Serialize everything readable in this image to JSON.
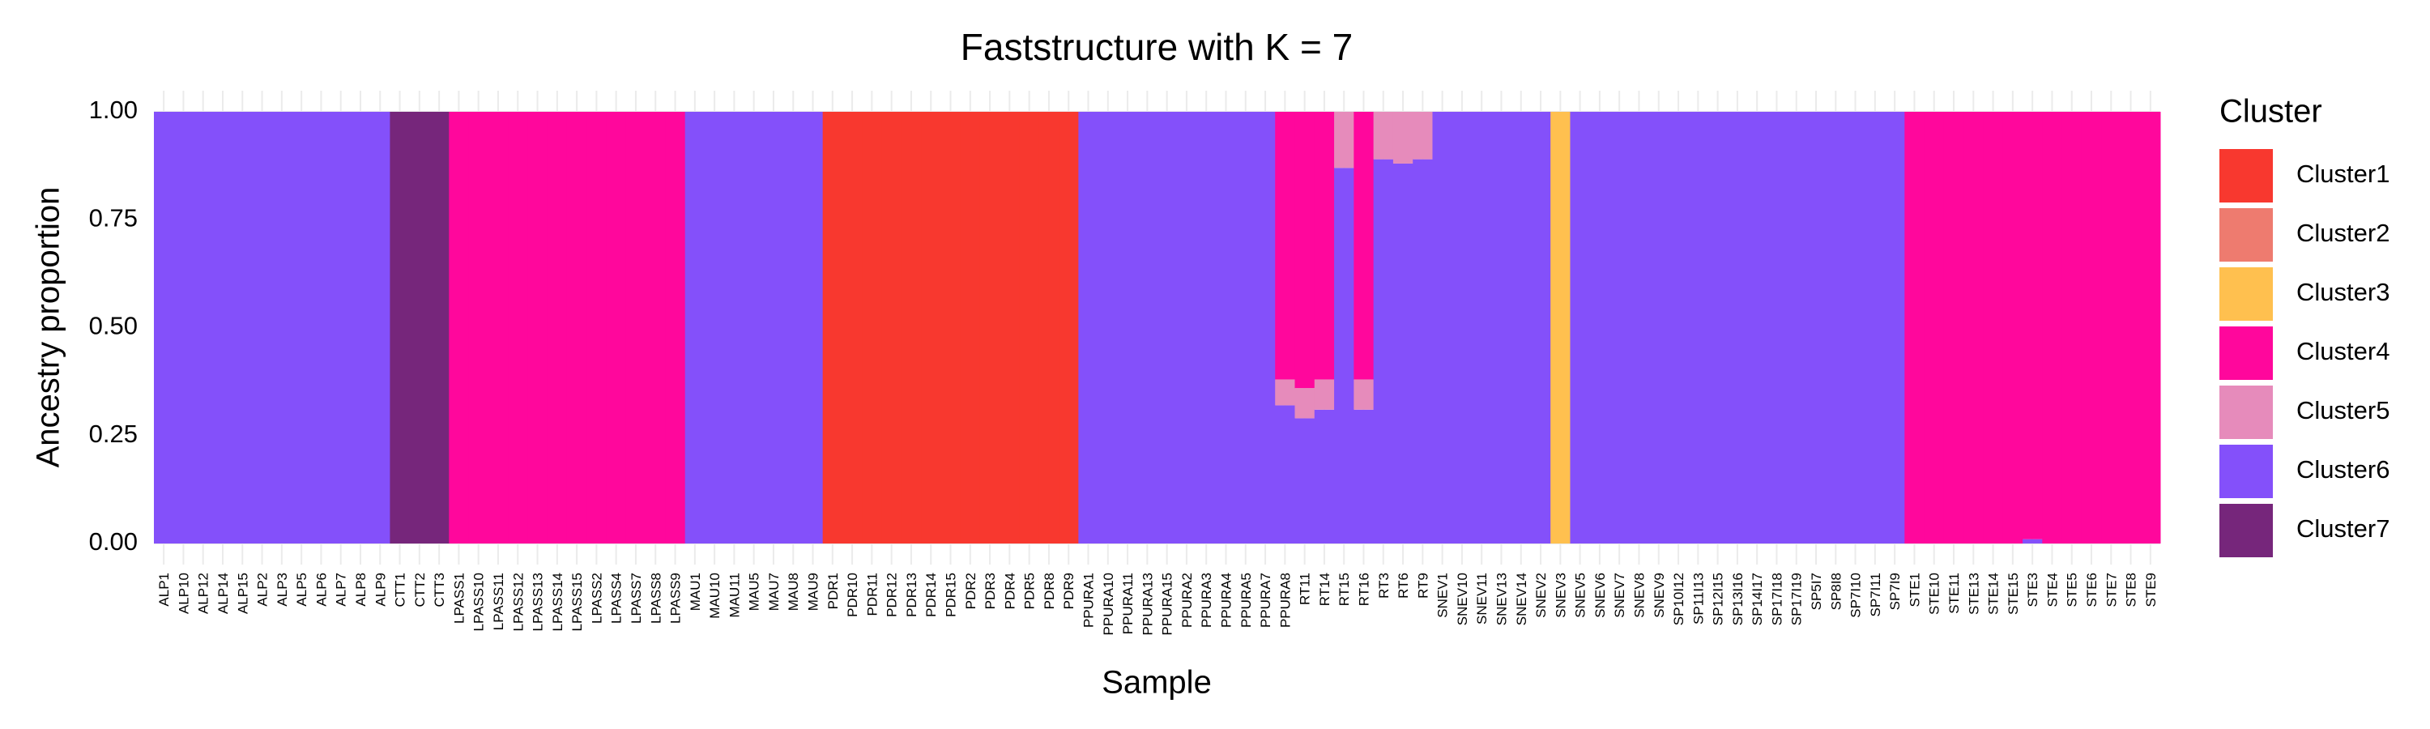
{
  "chart_data": {
    "type": "stacked_bar",
    "title": "Faststructure with K = 7",
    "x_label": "Sample",
    "y_label": "Ancestry proportion",
    "legend_title": "Cluster",
    "legend_position": "right",
    "grid": true,
    "ylim": [
      0,
      1
    ],
    "yticks": [
      {
        "value": 0,
        "label": "0.00"
      },
      {
        "value": 0.25,
        "label": "0.25"
      },
      {
        "value": 0.5,
        "label": "0.50"
      },
      {
        "value": 0.75,
        "label": "0.75"
      },
      {
        "value": 1,
        "label": "1.00"
      }
    ],
    "categories": [
      "ALP1",
      "ALP10",
      "ALP12",
      "ALP14",
      "ALP15",
      "ALP2",
      "ALP3",
      "ALP5",
      "ALP6",
      "ALP7",
      "ALP8",
      "ALP9",
      "CTT1",
      "CTT2",
      "CTT3",
      "LPASS1",
      "LPASS10",
      "LPASS11",
      "LPASS12",
      "LPASS13",
      "LPASS14",
      "LPASS15",
      "LPASS2",
      "LPASS4",
      "LPASS7",
      "LPASS8",
      "LPASS9",
      "MAU1",
      "MAU10",
      "MAU11",
      "MAU5",
      "MAU7",
      "MAU8",
      "MAU9",
      "PDR1",
      "PDR10",
      "PDR11",
      "PDR12",
      "PDR13",
      "PDR14",
      "PDR15",
      "PDR2",
      "PDR3",
      "PDR4",
      "PDR5",
      "PDR8",
      "PDR9",
      "PPURA1",
      "PPURA10",
      "PPURA11",
      "PPURA13",
      "PPURA15",
      "PPURA2",
      "PPURA3",
      "PPURA4",
      "PPURA5",
      "PPURA7",
      "PPURA8",
      "RT11",
      "RT14",
      "RT15",
      "RT16",
      "RT3",
      "RT6",
      "RT9",
      "SNEV1",
      "SNEV10",
      "SNEV11",
      "SNEV13",
      "SNEV14",
      "SNEV2",
      "SNEV3",
      "SNEV5",
      "SNEV6",
      "SNEV7",
      "SNEV8",
      "SNEV9",
      "SP10I12",
      "SP11I13",
      "SP12I15",
      "SP13I16",
      "SP14I17",
      "SP17I18",
      "SP17I19",
      "SP5I7",
      "SP8I8",
      "SP7I10",
      "SP7I11",
      "SP7I9",
      "STE1",
      "STE10",
      "STE11",
      "STE13",
      "STE14",
      "STE15",
      "STE3",
      "STE4",
      "STE5",
      "STE6",
      "STE7",
      "STE8",
      "STE9"
    ],
    "series": [
      {
        "name": "Cluster7",
        "color": "#76267b",
        "values": [
          0,
          0,
          0,
          0,
          0,
          0,
          0,
          0,
          0,
          0,
          0,
          0,
          1,
          1,
          1,
          0,
          0,
          0,
          0,
          0,
          0,
          0,
          0,
          0,
          0,
          0,
          0,
          0,
          0,
          0,
          0,
          0,
          0,
          0,
          0,
          0,
          0,
          0,
          0,
          0,
          0,
          0,
          0,
          0,
          0,
          0,
          0,
          0,
          0,
          0,
          0,
          0,
          0,
          0,
          0,
          0,
          0,
          0,
          0,
          0,
          0,
          0,
          0,
          0,
          0,
          0,
          0,
          0,
          0,
          0,
          0,
          0,
          0,
          0,
          0,
          0,
          0,
          0,
          0,
          0,
          0,
          0,
          0,
          0,
          0,
          0,
          0,
          0,
          0,
          0,
          0,
          0,
          0,
          0,
          0,
          0,
          0,
          0,
          0,
          0,
          0,
          0
        ]
      },
      {
        "name": "Cluster6",
        "color": "#8450fa",
        "values": [
          1,
          1,
          1,
          1,
          1,
          1,
          1,
          1,
          1,
          1,
          1,
          1,
          0,
          0,
          0,
          0,
          0,
          0,
          0,
          0,
          0,
          0,
          0,
          0,
          0,
          0,
          0,
          1,
          1,
          1,
          1,
          1,
          1,
          1,
          0,
          0,
          0,
          0,
          0,
          0,
          0,
          0,
          0,
          0,
          0,
          0,
          0,
          1,
          1,
          1,
          1,
          1,
          1,
          1,
          1,
          1,
          1,
          0.32,
          0.29,
          0.31,
          0.87,
          0.31,
          0.89,
          0.88,
          0.89,
          1,
          1,
          1,
          1,
          1,
          1,
          0,
          1,
          1,
          1,
          1,
          1,
          1,
          1,
          1,
          1,
          1,
          1,
          1,
          1,
          1,
          1,
          1,
          1,
          0,
          0,
          0,
          0,
          0,
          0,
          0.01,
          0,
          0,
          0,
          0,
          0,
          0
        ]
      },
      {
        "name": "Cluster5",
        "color": "#e68bbb",
        "values": [
          0,
          0,
          0,
          0,
          0,
          0,
          0,
          0,
          0,
          0,
          0,
          0,
          0,
          0,
          0,
          0,
          0,
          0,
          0,
          0,
          0,
          0,
          0,
          0,
          0,
          0,
          0,
          0,
          0,
          0,
          0,
          0,
          0,
          0,
          0,
          0,
          0,
          0,
          0,
          0,
          0,
          0,
          0,
          0,
          0,
          0,
          0,
          0,
          0,
          0,
          0,
          0,
          0,
          0,
          0,
          0,
          0,
          0.06,
          0.07,
          0.07,
          0.13,
          0.07,
          0.11,
          0.12,
          0.11,
          0,
          0,
          0,
          0,
          0,
          0,
          0,
          0,
          0,
          0,
          0,
          0,
          0,
          0,
          0,
          0,
          0,
          0,
          0,
          0,
          0,
          0,
          0,
          0,
          0,
          0,
          0,
          0,
          0,
          0,
          0,
          0,
          0,
          0,
          0,
          0,
          0
        ]
      },
      {
        "name": "Cluster4",
        "color": "#ff079c",
        "values": [
          0,
          0,
          0,
          0,
          0,
          0,
          0,
          0,
          0,
          0,
          0,
          0,
          0,
          0,
          0,
          1,
          1,
          1,
          1,
          1,
          1,
          1,
          1,
          1,
          1,
          1,
          1,
          0,
          0,
          0,
          0,
          0,
          0,
          0,
          0,
          0,
          0,
          0,
          0,
          0,
          0,
          0,
          0,
          0,
          0,
          0,
          0,
          0,
          0,
          0,
          0,
          0,
          0,
          0,
          0,
          0,
          0,
          0.62,
          0.64,
          0.62,
          0,
          0.62,
          0,
          0,
          0,
          0,
          0,
          0,
          0,
          0,
          0,
          0,
          0,
          0,
          0,
          0,
          0,
          0,
          0,
          0,
          0,
          0,
          0,
          0,
          0,
          0,
          0,
          0,
          0,
          1,
          1,
          1,
          1,
          1,
          1,
          0.99,
          1,
          1,
          1,
          1,
          1,
          1
        ]
      },
      {
        "name": "Cluster3",
        "color": "#ffc04f",
        "values": [
          0,
          0,
          0,
          0,
          0,
          0,
          0,
          0,
          0,
          0,
          0,
          0,
          0,
          0,
          0,
          0,
          0,
          0,
          0,
          0,
          0,
          0,
          0,
          0,
          0,
          0,
          0,
          0,
          0,
          0,
          0,
          0,
          0,
          0,
          0,
          0,
          0,
          0,
          0,
          0,
          0,
          0,
          0,
          0,
          0,
          0,
          0,
          0,
          0,
          0,
          0,
          0,
          0,
          0,
          0,
          0,
          0,
          0,
          0,
          0,
          0,
          0,
          0,
          0,
          0,
          0,
          0,
          0,
          0,
          0,
          0,
          1,
          0,
          0,
          0,
          0,
          0,
          0,
          0,
          0,
          0,
          0,
          0,
          0,
          0,
          0,
          0,
          0,
          0,
          0,
          0,
          0,
          0,
          0,
          0,
          0,
          0,
          0,
          0,
          0,
          0,
          0
        ]
      },
      {
        "name": "Cluster2",
        "color": "#ee7b6f",
        "values": [
          0,
          0,
          0,
          0,
          0,
          0,
          0,
          0,
          0,
          0,
          0,
          0,
          0,
          0,
          0,
          0,
          0,
          0,
          0,
          0,
          0,
          0,
          0,
          0,
          0,
          0,
          0,
          0,
          0,
          0,
          0,
          0,
          0,
          0,
          0,
          0,
          0,
          0,
          0,
          0,
          0,
          0,
          0,
          0,
          0,
          0,
          0,
          0,
          0,
          0,
          0,
          0,
          0,
          0,
          0,
          0,
          0,
          0,
          0,
          0,
          0,
          0,
          0,
          0,
          0,
          0,
          0,
          0,
          0,
          0,
          0,
          0,
          0,
          0,
          0,
          0,
          0,
          0,
          0,
          0,
          0,
          0,
          0,
          0,
          0,
          0,
          0,
          0,
          0,
          0,
          0,
          0,
          0,
          0,
          0,
          0,
          0,
          0,
          0,
          0,
          0,
          0
        ]
      },
      {
        "name": "Cluster1",
        "color": "#f8382f",
        "values": [
          0,
          0,
          0,
          0,
          0,
          0,
          0,
          0,
          0,
          0,
          0,
          0,
          0,
          0,
          0,
          0,
          0,
          0,
          0,
          0,
          0,
          0,
          0,
          0,
          0,
          0,
          0,
          0,
          0,
          0,
          0,
          0,
          0,
          0,
          1,
          1,
          1,
          1,
          1,
          1,
          1,
          1,
          1,
          1,
          1,
          1,
          1,
          0,
          0,
          0,
          0,
          0,
          0,
          0,
          0,
          0,
          0,
          0,
          0,
          0,
          0,
          0,
          0,
          0,
          0,
          0,
          0,
          0,
          0,
          0,
          0,
          0,
          0,
          0,
          0,
          0,
          0,
          0,
          0,
          0,
          0,
          0,
          0,
          0,
          0,
          0,
          0,
          0,
          0,
          0,
          0,
          0,
          0,
          0,
          0,
          0,
          0,
          0,
          0,
          0,
          0,
          0
        ]
      }
    ]
  }
}
